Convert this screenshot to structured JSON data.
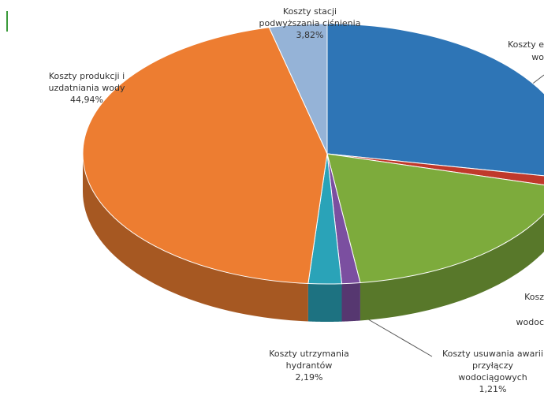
{
  "chart_data": {
    "type": "pie3d",
    "categories": [
      [
        "Koszty e",
        "wo"
      ],
      null,
      [
        "Kosz",
        "wodoc"
      ],
      [
        "Koszty usuwania awarii",
        "przyłączy",
        "wodociągowych"
      ],
      [
        "Koszty utrzymania",
        "hydrantów"
      ],
      [
        "Koszty produkcji i",
        "uzdatniania wody"
      ],
      [
        "Koszty stacji",
        "podwyższania ciśnienia"
      ]
    ],
    "values": [
      28,
      1.2,
      18.64,
      1.21,
      2.19,
      44.94,
      3.82
    ],
    "value_labels": [
      null,
      null,
      null,
      "1,21%",
      "2,19%",
      "44,94%",
      "3,82%"
    ],
    "colors": [
      "#2e75b6",
      "#c0392b",
      "#7dab3c",
      "#7b4fa0",
      "#2aa3b8",
      "#ed7d31",
      "#95b3d7"
    ]
  }
}
